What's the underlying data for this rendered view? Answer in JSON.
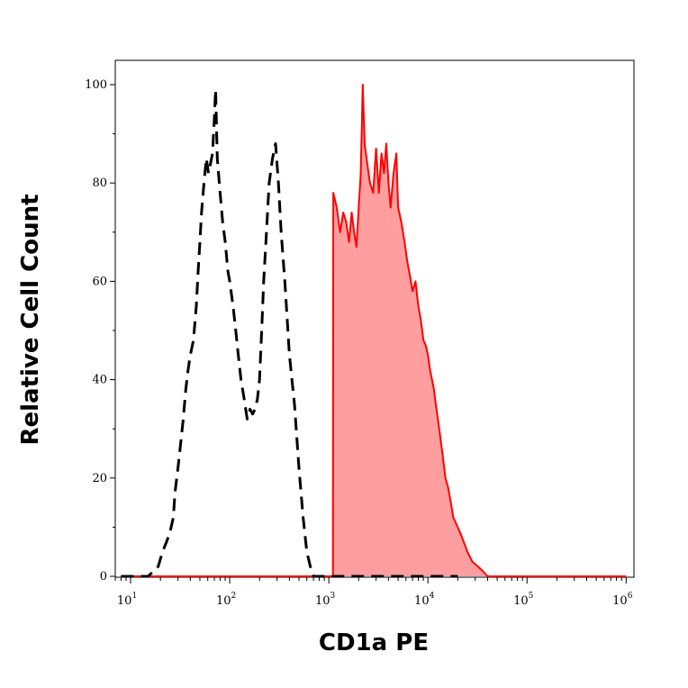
{
  "chart_data": {
    "type": "area",
    "xlabel": "CD1a PE",
    "ylabel": "Relative Cell Count",
    "x_scale": "log",
    "xlim": [
      7,
      1200000
    ],
    "ylim": [
      0,
      100
    ],
    "x_ticks": [
      {
        "base": "10",
        "exp": "1",
        "value": 10
      },
      {
        "base": "10",
        "exp": "2",
        "value": 100
      },
      {
        "base": "10",
        "exp": "3",
        "value": 1000
      },
      {
        "base": "10",
        "exp": "4",
        "value": 10000
      },
      {
        "base": "10",
        "exp": "5",
        "value": 100000
      },
      {
        "base": "10",
        "exp": "6",
        "value": 1000000
      }
    ],
    "y_ticks": [
      "0",
      "20",
      "40",
      "60",
      "80",
      "100"
    ],
    "y_tick_values": [
      0,
      20,
      40,
      60,
      80,
      100
    ],
    "grid": false,
    "series": [
      {
        "style": "dashed",
        "color": "#000000",
        "fill": "none",
        "points": [
          [
            8,
            0
          ],
          [
            12,
            0
          ],
          [
            15,
            0
          ],
          [
            17,
            1
          ],
          [
            19,
            2
          ],
          [
            21,
            5
          ],
          [
            23,
            7
          ],
          [
            25,
            9
          ],
          [
            27,
            12
          ],
          [
            28,
            17
          ],
          [
            30,
            22
          ],
          [
            32,
            27
          ],
          [
            34,
            32
          ],
          [
            36,
            38
          ],
          [
            38,
            42
          ],
          [
            40,
            45
          ],
          [
            43,
            48
          ],
          [
            46,
            55
          ],
          [
            48,
            62
          ],
          [
            50,
            68
          ],
          [
            52,
            74
          ],
          [
            55,
            80
          ],
          [
            58,
            85
          ],
          [
            61,
            82
          ],
          [
            64,
            84
          ],
          [
            67,
            86
          ],
          [
            70,
            93
          ],
          [
            72,
            99
          ],
          [
            75,
            85
          ],
          [
            80,
            78
          ],
          [
            85,
            72
          ],
          [
            90,
            68
          ],
          [
            96,
            62
          ],
          [
            100,
            60
          ],
          [
            108,
            55
          ],
          [
            115,
            50
          ],
          [
            122,
            45
          ],
          [
            130,
            40
          ],
          [
            140,
            36
          ],
          [
            150,
            32
          ],
          [
            160,
            34
          ],
          [
            170,
            33
          ],
          [
            180,
            34
          ],
          [
            190,
            36
          ],
          [
            200,
            40
          ],
          [
            210,
            50
          ],
          [
            220,
            60
          ],
          [
            235,
            70
          ],
          [
            250,
            80
          ],
          [
            270,
            85
          ],
          [
            290,
            88
          ],
          [
            310,
            80
          ],
          [
            330,
            70
          ],
          [
            360,
            60
          ],
          [
            400,
            45
          ],
          [
            450,
            35
          ],
          [
            500,
            22
          ],
          [
            550,
            12
          ],
          [
            600,
            5
          ],
          [
            650,
            2
          ],
          [
            700,
            0
          ],
          [
            750,
            0
          ],
          [
            1200,
            0
          ],
          [
            2000,
            0
          ],
          [
            4000,
            0
          ],
          [
            8000,
            0
          ],
          [
            20000,
            0
          ]
        ]
      },
      {
        "style": "solid",
        "color": "#ff0000",
        "fill": "#ff9e9e",
        "points": [
          [
            8,
            0
          ],
          [
            500,
            0
          ],
          [
            1100,
            0
          ],
          [
            1110,
            78
          ],
          [
            1200,
            75
          ],
          [
            1300,
            70
          ],
          [
            1400,
            74
          ],
          [
            1500,
            72
          ],
          [
            1600,
            68
          ],
          [
            1700,
            74
          ],
          [
            1800,
            70
          ],
          [
            1900,
            67
          ],
          [
            2000,
            75
          ],
          [
            2100,
            82
          ],
          [
            2200,
            100
          ],
          [
            2300,
            88
          ],
          [
            2400,
            85
          ],
          [
            2600,
            80
          ],
          [
            2800,
            78
          ],
          [
            3000,
            87
          ],
          [
            3200,
            78
          ],
          [
            3400,
            86
          ],
          [
            3600,
            82
          ],
          [
            3800,
            88
          ],
          [
            4000,
            80
          ],
          [
            4200,
            75
          ],
          [
            4500,
            82
          ],
          [
            4800,
            86
          ],
          [
            5000,
            75
          ],
          [
            5400,
            72
          ],
          [
            5800,
            68
          ],
          [
            6200,
            64
          ],
          [
            6600,
            61
          ],
          [
            7000,
            58
          ],
          [
            7500,
            60
          ],
          [
            8000,
            55
          ],
          [
            8500,
            52
          ],
          [
            9000,
            48
          ],
          [
            9500,
            47
          ],
          [
            10000,
            45
          ],
          [
            10500,
            42
          ],
          [
            11000,
            40
          ],
          [
            11500,
            38
          ],
          [
            12000,
            35
          ],
          [
            13000,
            30
          ],
          [
            14000,
            25
          ],
          [
            15000,
            20
          ],
          [
            16000,
            18
          ],
          [
            17000,
            15
          ],
          [
            18000,
            12
          ],
          [
            20000,
            10
          ],
          [
            22000,
            8
          ],
          [
            25000,
            5
          ],
          [
            28000,
            3
          ],
          [
            32000,
            2
          ],
          [
            36000,
            1
          ],
          [
            40000,
            0
          ],
          [
            50000,
            0
          ],
          [
            100000,
            0
          ],
          [
            1000000,
            0
          ]
        ]
      }
    ]
  }
}
